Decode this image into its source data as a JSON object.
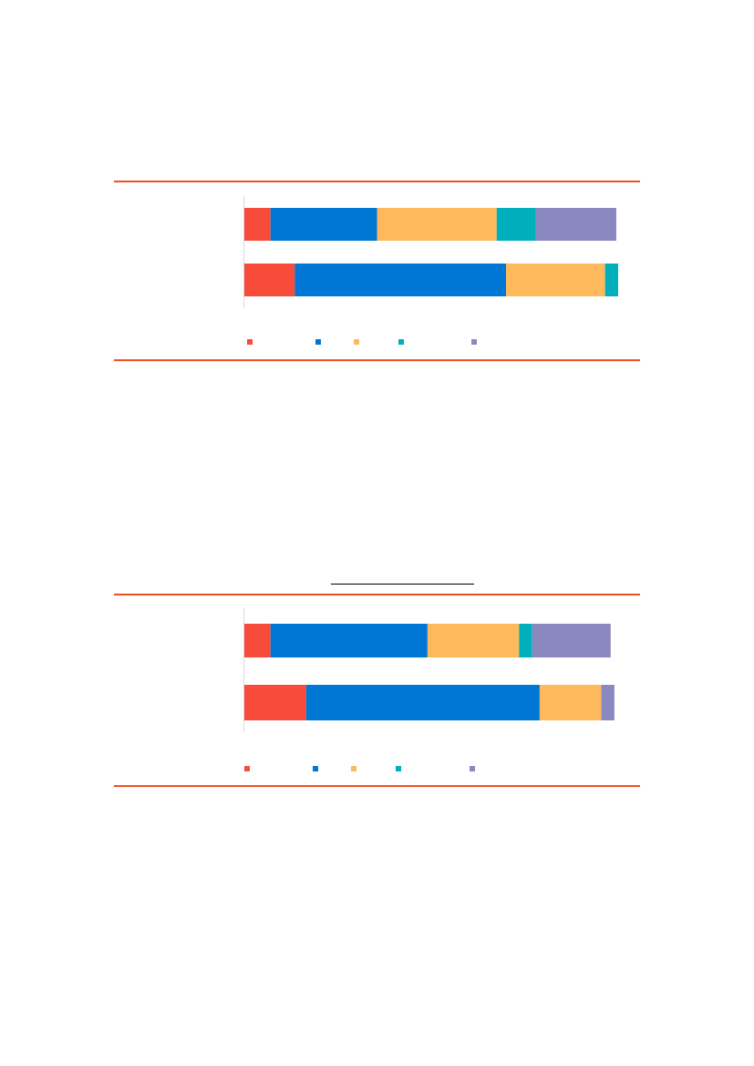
{
  "colors": {
    "rule": "#f04e23",
    "palette": [
      "#f84c3a",
      "#0077d4",
      "#feb95c",
      "#00afbb",
      "#8b88bf"
    ]
  },
  "chart_data": [
    {
      "type": "bar",
      "orientation": "horizontal",
      "stacked": true,
      "categories": [
        "",
        ""
      ],
      "series": [
        {
          "values": [
            7,
            13.5
          ]
        },
        {
          "values": [
            28.5,
            56.5
          ]
        },
        {
          "values": [
            32,
            26.5
          ]
        },
        {
          "values": [
            10.5,
            3.5
          ]
        },
        {
          "values": [
            21.5,
            0
          ]
        }
      ],
      "xlim": [
        0,
        100
      ],
      "legend": "bottom",
      "grid": false
    },
    {
      "type": "bar",
      "orientation": "horizontal",
      "stacked": true,
      "categories": [
        "",
        ""
      ],
      "series": [
        {
          "values": [
            7,
            16.5
          ]
        },
        {
          "values": [
            42,
            62.5
          ]
        },
        {
          "values": [
            24.5,
            16.5
          ]
        },
        {
          "values": [
            3.5,
            0
          ]
        },
        {
          "values": [
            21,
            3.5
          ]
        }
      ],
      "xlim": [
        0,
        100
      ],
      "legend": "bottom",
      "grid": false
    }
  ]
}
